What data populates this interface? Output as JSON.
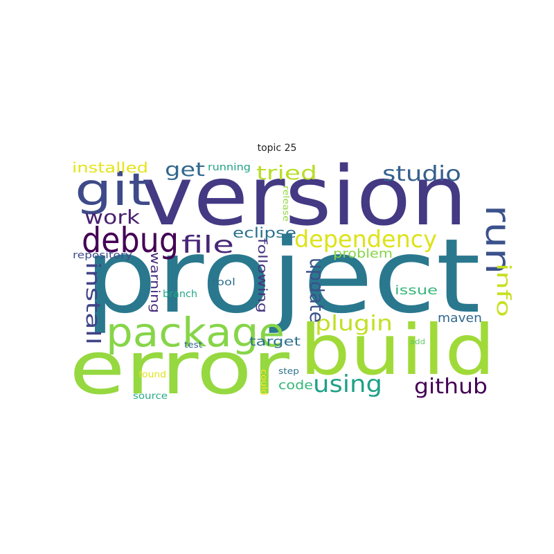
{
  "title": "topic 25",
  "words": [
    {
      "text": "version",
      "color": "#443983"
    },
    {
      "text": "project",
      "color": "#2a788e"
    },
    {
      "text": "build",
      "color": "#a0da39"
    },
    {
      "text": "error",
      "color": "#95d840"
    },
    {
      "text": "git",
      "color": "#3e4a89"
    },
    {
      "text": "package",
      "color": "#86d549"
    },
    {
      "text": "debug",
      "color": "#440154"
    },
    {
      "text": "run",
      "color": "#3b528b"
    },
    {
      "text": "dependency",
      "color": "#dde318"
    },
    {
      "text": "studio",
      "color": "#35608d"
    },
    {
      "text": "file",
      "color": "#482677"
    },
    {
      "text": "get",
      "color": "#31688e"
    },
    {
      "text": "tried",
      "color": "#b8de29"
    },
    {
      "text": "work",
      "color": "#481f70"
    },
    {
      "text": "github",
      "color": "#440154"
    },
    {
      "text": "using",
      "color": "#1fa187"
    },
    {
      "text": "plugin",
      "color": "#c2df23"
    },
    {
      "text": "update",
      "color": "#3b528b"
    },
    {
      "text": "install",
      "color": "#414487"
    },
    {
      "text": "info",
      "color": "#c8e020"
    },
    {
      "text": "installed",
      "color": "#e5e419"
    },
    {
      "text": "eclipse",
      "color": "#2c728e"
    },
    {
      "text": "following",
      "color": "#46337f"
    },
    {
      "text": "target",
      "color": "#2d708e"
    },
    {
      "text": "issue",
      "color": "#35b779"
    },
    {
      "text": "maven",
      "color": "#31688e"
    },
    {
      "text": "problem",
      "color": "#86d549"
    },
    {
      "text": "warning",
      "color": "#472d7b"
    },
    {
      "text": "code",
      "color": "#35b779"
    },
    {
      "text": "running",
      "color": "#20a386"
    },
    {
      "text": "repository",
      "color": "#3e4c8a"
    },
    {
      "text": "tool",
      "color": "#2e6f8e"
    },
    {
      "text": "branch",
      "color": "#21a685"
    },
    {
      "text": "test",
      "color": "#33638d"
    },
    {
      "text": "found",
      "color": "#dde318"
    },
    {
      "text": "source",
      "color": "#25ab82"
    },
    {
      "text": "step",
      "color": "#2c738e"
    },
    {
      "text": "release",
      "color": "#95d840"
    },
    {
      "text": "could",
      "color": "#fde725"
    },
    {
      "text": "add",
      "color": "#5ec962"
    }
  ]
}
